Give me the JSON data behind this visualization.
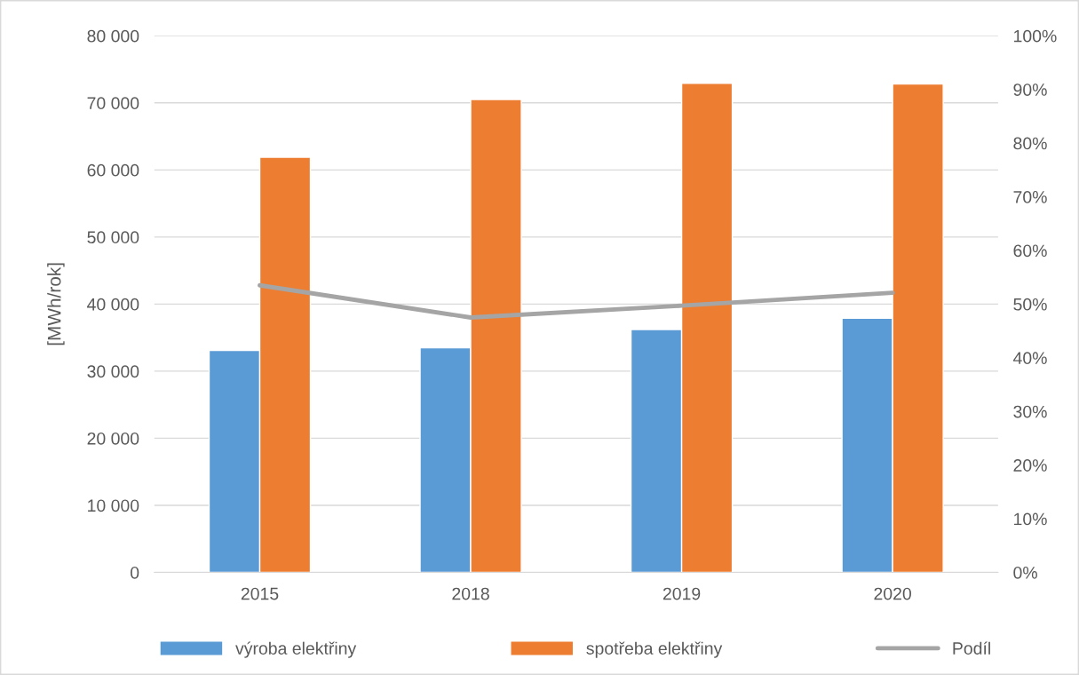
{
  "chart_data": {
    "type": "bar",
    "categories": [
      "2015",
      "2018",
      "2019",
      "2020"
    ],
    "ylabel": "[MWh/rok]",
    "series": [
      {
        "name": "výroba elektřiny",
        "color": "#5b9bd5",
        "values": [
          33100,
          33500,
          36200,
          37900
        ]
      },
      {
        "name": "spotřeba elektřiny",
        "color": "#ed7d31",
        "values": [
          61900,
          70500,
          72900,
          72800
        ]
      },
      {
        "name": "Podíl",
        "type": "line",
        "axis": "y2",
        "color": "#a5a5a5",
        "values": [
          53.5,
          47.5,
          49.7,
          52.1
        ]
      }
    ],
    "ylim": [
      0,
      80000
    ],
    "yticks": [
      0,
      {
        "value": 10000,
        "label": "10 000"
      },
      {
        "value": 20000,
        "label": "20 000"
      },
      {
        "value": 30000,
        "label": "30 000"
      },
      {
        "value": 40000,
        "label": "40 000"
      },
      {
        "value": 50000,
        "label": "50 000"
      },
      {
        "value": 60000,
        "label": "60 000"
      },
      {
        "value": 70000,
        "label": "70 000"
      },
      {
        "value": 80000,
        "label": "80 000"
      }
    ],
    "y2lim": [
      0,
      100
    ],
    "y2ticks": [
      {
        "value": 0,
        "label": "0%"
      },
      {
        "value": 10,
        "label": "10%"
      },
      {
        "value": 20,
        "label": "20%"
      },
      {
        "value": 30,
        "label": "30%"
      },
      {
        "value": 40,
        "label": "40%"
      },
      {
        "value": 50,
        "label": "50%"
      },
      {
        "value": 60,
        "label": "60%"
      },
      {
        "value": 70,
        "label": "70%"
      },
      {
        "value": 80,
        "label": "80%"
      },
      {
        "value": 90,
        "label": "90%"
      },
      {
        "value": 100,
        "label": "100%"
      }
    ],
    "grid": "y",
    "legend": "bottom",
    "marker": "none",
    "line_style": "solid"
  }
}
